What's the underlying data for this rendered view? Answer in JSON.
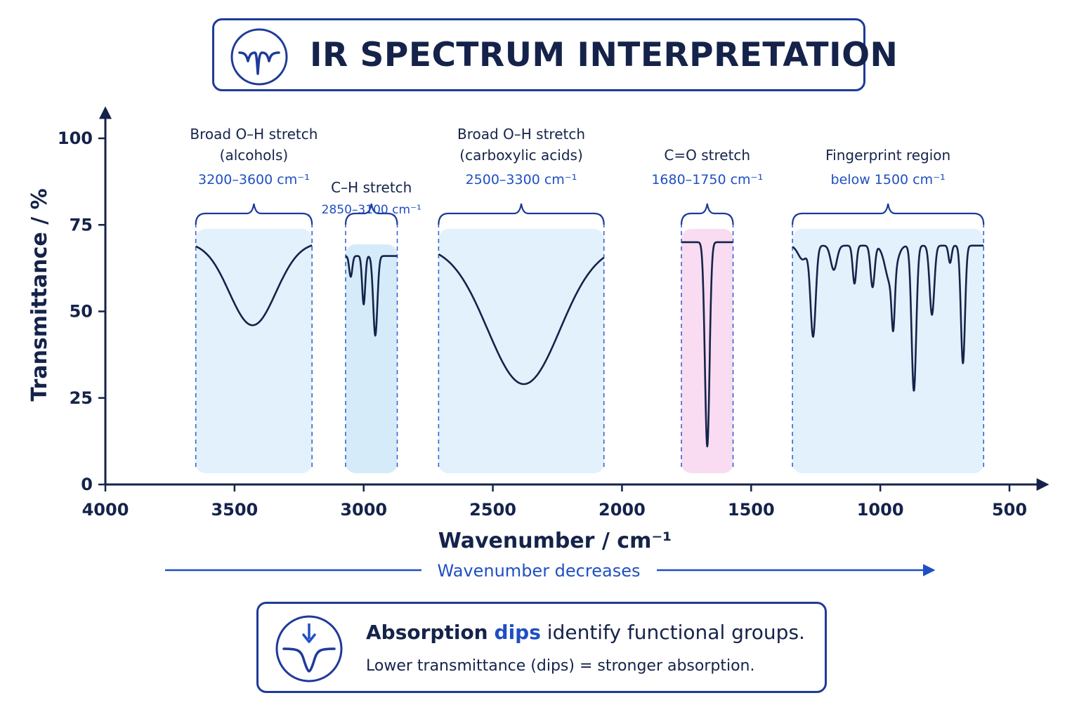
{
  "header": {
    "title": "IR SPECTRUM INTERPRETATION"
  },
  "direction_note": "Wavenumber decreases",
  "footer": {
    "headline_part1": "Absorption",
    "headline_part2": "dips",
    "headline_part3": "identify functional groups.",
    "subline": "Lower transmittance (dips) = stronger absorption."
  },
  "colors": {
    "navy": "#15234a",
    "accent_blue": "#1f4fc4",
    "region_fill": "#e3f1fc",
    "region_fill_ch": "#d6ebfa",
    "region_fill_co": "#f9dcf1"
  },
  "chart_data": {
    "type": "line",
    "xlabel": "Wavenumber / cm⁻¹",
    "ylabel": "Transmittance / %",
    "xlim": [
      4000,
      500
    ],
    "ylim": [
      0,
      100
    ],
    "x_reversed": true,
    "xticks": [
      4000,
      3500,
      3000,
      2500,
      2000,
      1500,
      1000,
      500
    ],
    "yticks": [
      0,
      25,
      50,
      75,
      100
    ],
    "grid": false,
    "regions": [
      {
        "name": "Broad O–H stretch (alcohols)",
        "label_lines": [
          "Broad O–H stretch",
          "(alcohols)"
        ],
        "range_text": "3200–3600 cm⁻¹",
        "x_from": 3650,
        "x_to": 3200,
        "fill": "light-blue",
        "segments": [
          {
            "baseline": 70,
            "peaks": [
              {
                "x": 3430,
                "y": 46,
                "width": 90
              }
            ]
          }
        ]
      },
      {
        "name": "C–H stretch",
        "label_lines": [
          "C–H stretch"
        ],
        "range_text": "2850–3100 cm⁻¹",
        "x_from": 3070,
        "x_to": 2870,
        "fill": "blue",
        "segments": [
          {
            "baseline": 66,
            "peaks": [
              {
                "x": 3050,
                "y": 60,
                "width": 6
              },
              {
                "x": 3000,
                "y": 52,
                "width": 6
              },
              {
                "x": 2955,
                "y": 43,
                "width": 8
              }
            ]
          }
        ]
      },
      {
        "name": "Broad O–H stretch (carboxylic acids)",
        "label_lines": [
          "Broad O–H stretch",
          "(carboxylic acids)"
        ],
        "range_text": "2500–3300 cm⁻¹",
        "x_from": 2710,
        "x_to": 2070,
        "fill": "light-blue",
        "segments": [
          {
            "baseline": 69,
            "peaks": [
              {
                "x": 2380,
                "y": 29,
                "width": 140
              }
            ]
          }
        ]
      },
      {
        "name": "C=O stretch",
        "label_lines": [
          "C=O stretch"
        ],
        "range_text": "1680–1750 cm⁻¹",
        "x_from": 1770,
        "x_to": 1570,
        "fill": "pink",
        "segments": [
          {
            "baseline": 70,
            "peaks": [
              {
                "x": 1670,
                "y": 11,
                "width": 9
              }
            ]
          }
        ]
      },
      {
        "name": "Fingerprint region",
        "label_lines": [
          "Fingerprint region"
        ],
        "range_text": "below 1500 cm⁻¹",
        "x_from": 1340,
        "x_to": 600,
        "fill": "light-blue",
        "segments": [
          {
            "baseline": 69,
            "peaks": [
              {
                "x": 1300,
                "y": 65,
                "width": 18
              },
              {
                "x": 1260,
                "y": 43,
                "width": 10
              },
              {
                "x": 1180,
                "y": 62,
                "width": 12
              },
              {
                "x": 1100,
                "y": 58,
                "width": 7
              },
              {
                "x": 1030,
                "y": 57,
                "width": 8
              },
              {
                "x": 960,
                "y": 58,
                "width": 20
              },
              {
                "x": 950,
                "y": 54,
                "width": 6
              },
              {
                "x": 870,
                "y": 27,
                "width": 9
              },
              {
                "x": 800,
                "y": 49,
                "width": 9
              },
              {
                "x": 730,
                "y": 64,
                "width": 6
              },
              {
                "x": 680,
                "y": 35,
                "width": 8
              }
            ]
          }
        ]
      }
    ]
  }
}
